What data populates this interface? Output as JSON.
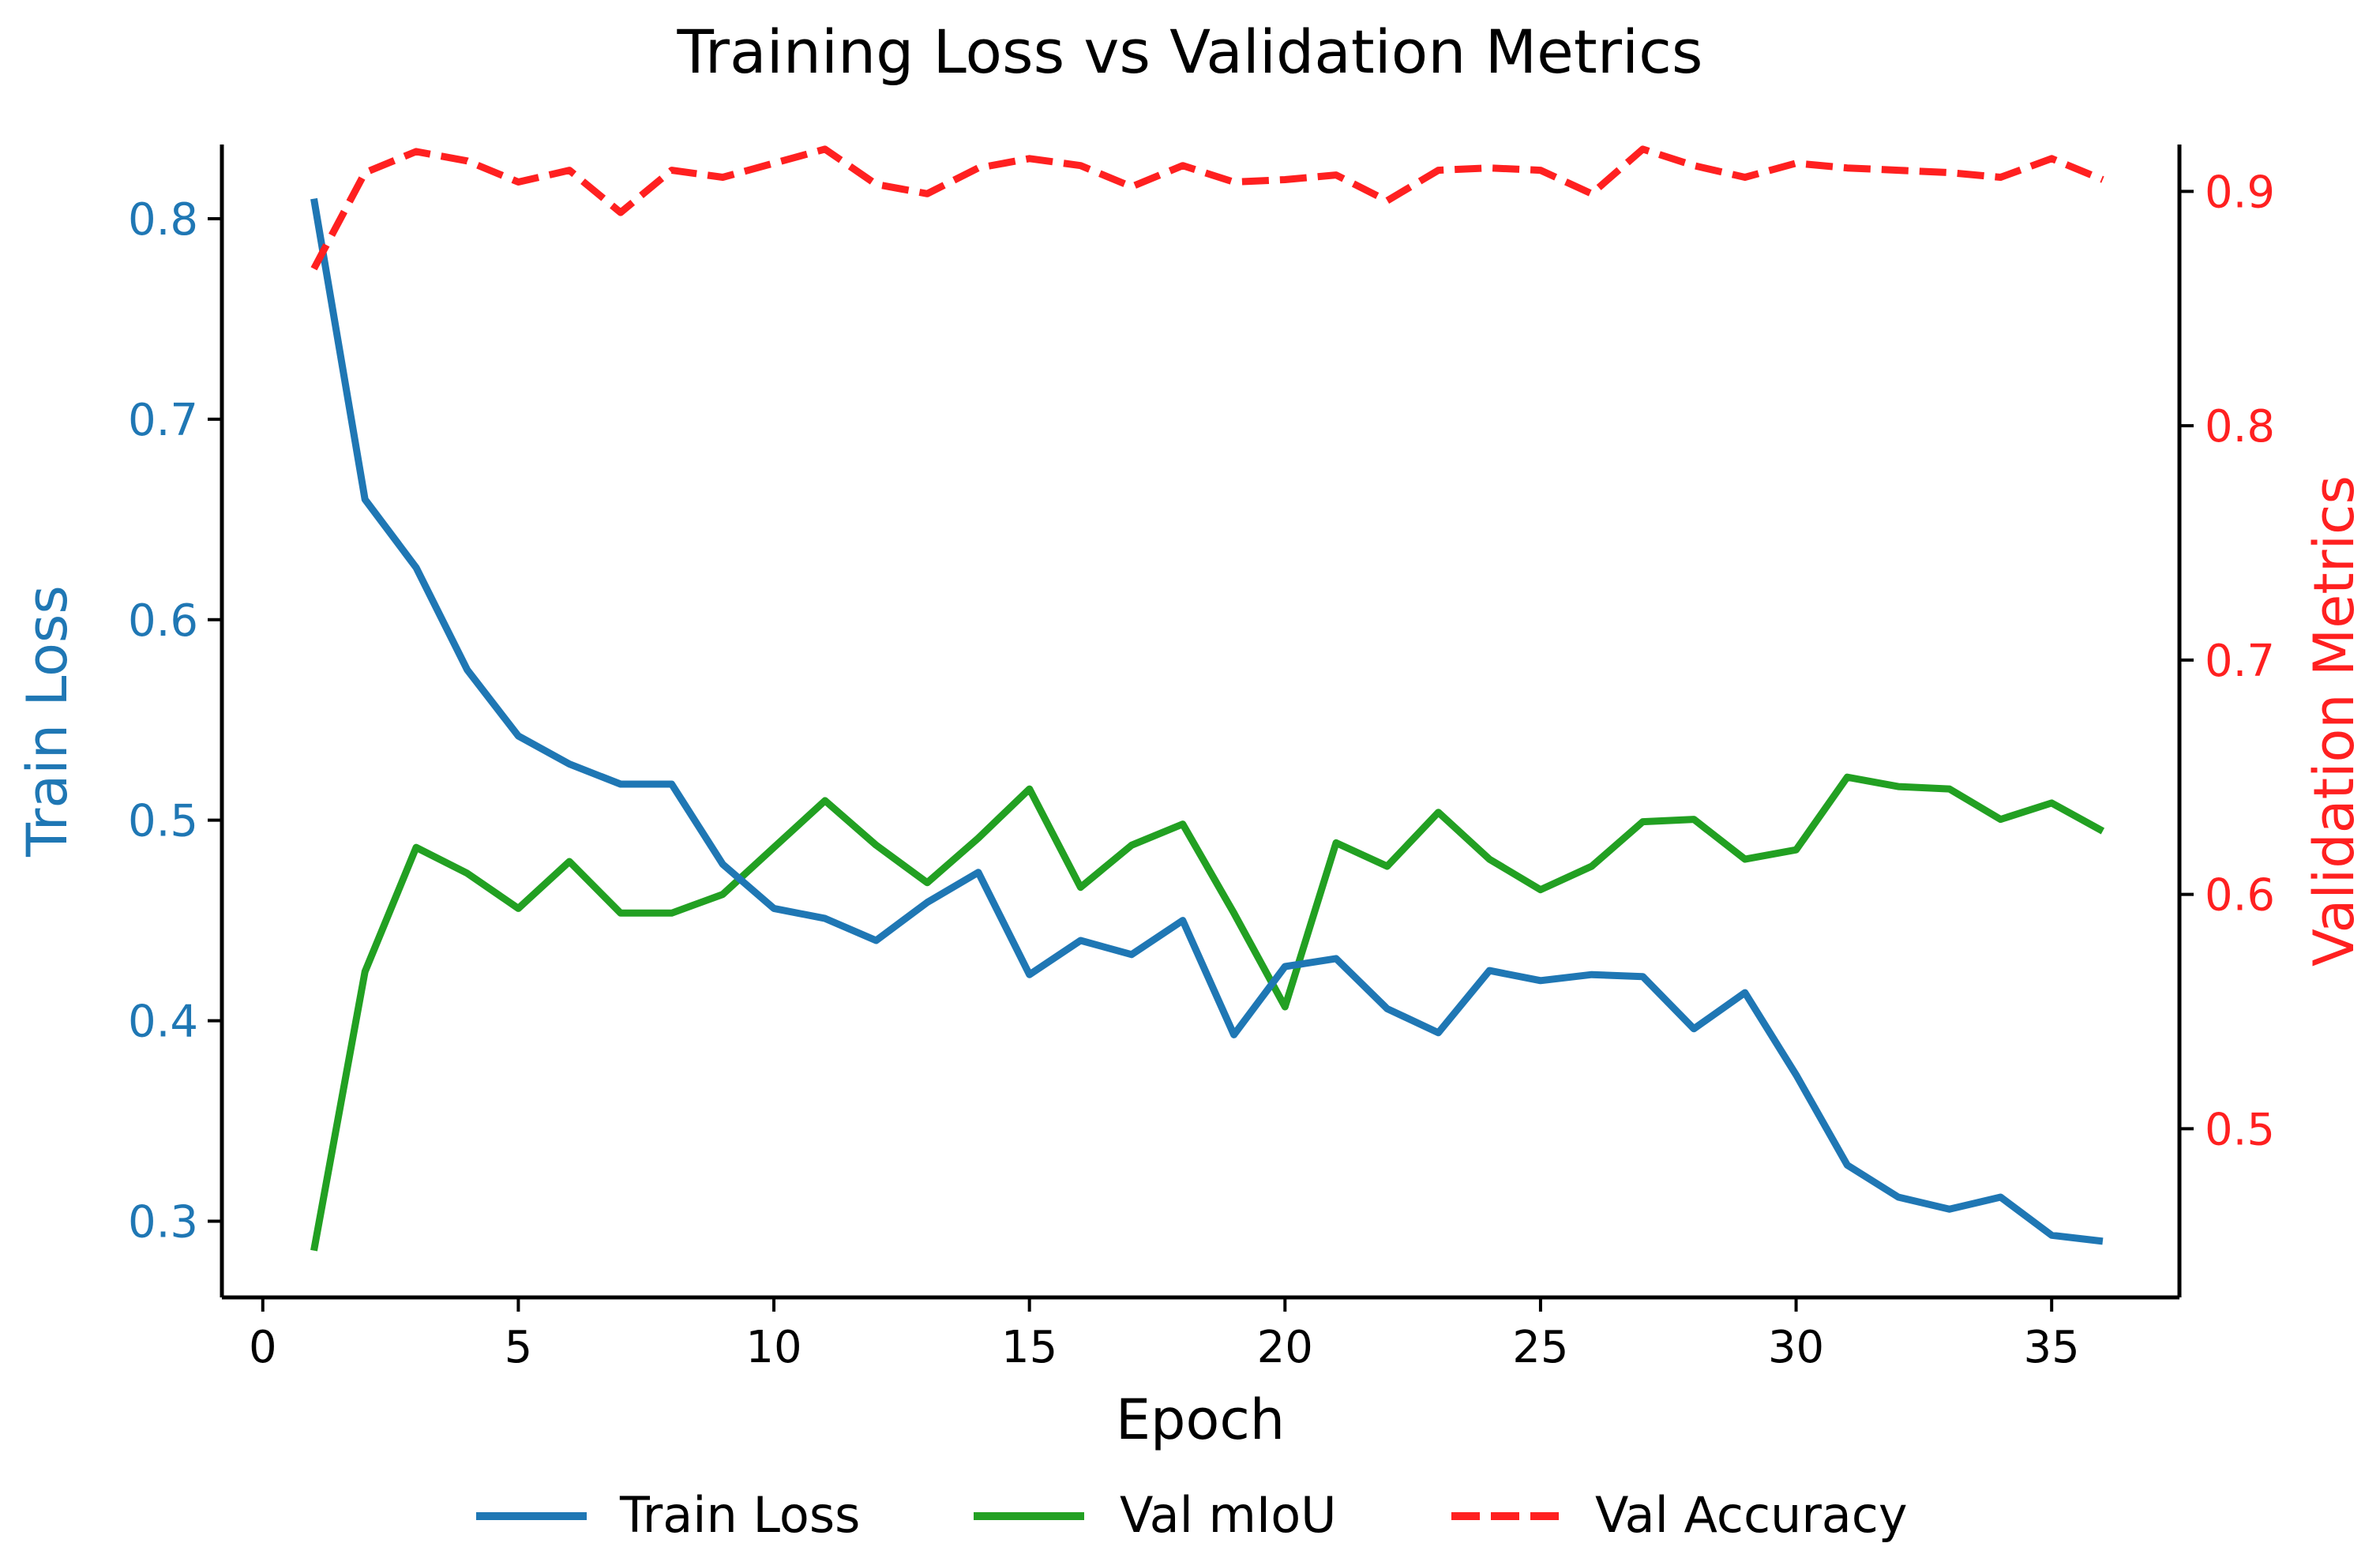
{
  "chart_data": {
    "type": "line",
    "title": "Training Loss vs Validation Metrics",
    "xlabel": "Epoch",
    "ylabel_left": "Train Loss",
    "ylabel_right": "Validation Metrics",
    "xlim": [
      -0.8,
      37.5
    ],
    "ylim_left": [
      0.262,
      0.837
    ],
    "ylim_right": [
      0.428,
      0.92
    ],
    "xticks": [
      0,
      5,
      10,
      15,
      20,
      25,
      30,
      35
    ],
    "yticks_left": [
      0.3,
      0.4,
      0.5,
      0.6,
      0.7,
      0.8
    ],
    "yticks_right": [
      0.5,
      0.6,
      0.7,
      0.8,
      0.9
    ],
    "legend_position": "bottom-center",
    "x": [
      1,
      2,
      3,
      4,
      5,
      6,
      7,
      8,
      9,
      10,
      11,
      12,
      13,
      14,
      15,
      16,
      17,
      18,
      19,
      20,
      21,
      22,
      23,
      24,
      25,
      26,
      27,
      28,
      29,
      30,
      31,
      32,
      33,
      34,
      35,
      36
    ],
    "series": [
      {
        "name": "Train Loss",
        "axis": "left",
        "color": "#1f77b4",
        "dash": "solid",
        "values": [
          0.81,
          0.66,
          0.626,
          0.575,
          0.542,
          0.528,
          0.518,
          0.518,
          0.478,
          0.456,
          0.451,
          0.44,
          0.459,
          0.474,
          0.423,
          0.44,
          0.433,
          0.45,
          0.393,
          0.427,
          0.431,
          0.406,
          0.394,
          0.425,
          0.42,
          0.423,
          0.422,
          0.396,
          0.414,
          0.373,
          0.328,
          0.312,
          0.306,
          0.312,
          0.293,
          0.29
        ]
      },
      {
        "name": "Val mIoU",
        "axis": "right",
        "color": "#22a022",
        "dash": "solid",
        "values": [
          0.448,
          0.567,
          0.62,
          0.609,
          0.594,
          0.614,
          0.592,
          0.592,
          0.6,
          0.62,
          0.64,
          0.621,
          0.605,
          0.624,
          0.645,
          0.603,
          0.621,
          0.63,
          0.592,
          0.552,
          0.622,
          0.612,
          0.635,
          0.615,
          0.602,
          0.612,
          0.631,
          0.632,
          0.615,
          0.619,
          0.65,
          0.646,
          0.645,
          0.632,
          0.639,
          0.627
        ]
      },
      {
        "name": "Val Accuracy",
        "axis": "right",
        "color": "#ff2020",
        "dash": "dashed",
        "values": [
          0.867,
          0.908,
          0.917,
          0.913,
          0.904,
          0.909,
          0.891,
          0.909,
          0.906,
          0.912,
          0.918,
          0.903,
          0.899,
          0.91,
          0.914,
          0.911,
          0.902,
          0.911,
          0.904,
          0.905,
          0.907,
          0.896,
          0.909,
          0.91,
          0.909,
          0.899,
          0.918,
          0.911,
          0.906,
          0.912,
          0.91,
          0.909,
          0.908,
          0.906,
          0.914,
          0.905
        ]
      }
    ]
  }
}
